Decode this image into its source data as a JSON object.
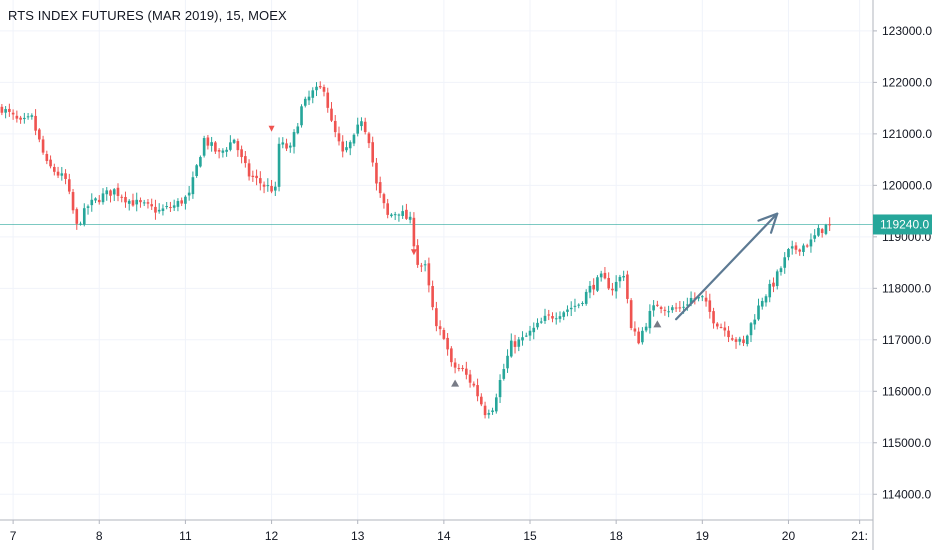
{
  "header": {
    "title": "RTS INDEX FUTURES (MAR 2019), 15, MOEX"
  },
  "colors": {
    "up": "#26a69a",
    "down": "#ef5350",
    "grid": "#f0f3fa",
    "axis_text": "#131722",
    "price_line": "#26a69a",
    "price_label_bg": "#26a69a",
    "arrow": "#5d7a93",
    "signal_down": "#ef5350",
    "signal_up": "#787b86"
  },
  "chart_data": {
    "type": "candlestick",
    "title": "RTS INDEX FUTURES (MAR 2019), 15, MOEX",
    "ylim": [
      113500,
      123600
    ],
    "y_ticks": [
      114000,
      115000,
      116000,
      117000,
      118000,
      119000,
      120000,
      121000,
      122000,
      123000
    ],
    "y_tick_labels": [
      "114000.0",
      "115000.0",
      "116000.0",
      "117000.0",
      "118000.0",
      "119000.0",
      "120000.0",
      "121000.0",
      "122000.0",
      "123000.0"
    ],
    "x_ticks": [
      {
        "label": "7",
        "bar": 3
      },
      {
        "label": "8",
        "bar": 26
      },
      {
        "label": "11",
        "bar": 49
      },
      {
        "label": "12",
        "bar": 72
      },
      {
        "label": "13",
        "bar": 95
      },
      {
        "label": "14",
        "bar": 118
      },
      {
        "label": "15",
        "bar": 141
      },
      {
        "label": "18",
        "bar": 164
      },
      {
        "label": "19",
        "bar": 187
      },
      {
        "label": "20",
        "bar": 210
      },
      {
        "label": "21:",
        "bar": 229
      }
    ],
    "total_bar_slots": 232,
    "grid": true,
    "last_price": 119240,
    "last_price_label": "119240.0",
    "path_points": [
      [
        0,
        121500
      ],
      [
        5,
        121200
      ],
      [
        8,
        121300
      ],
      [
        12,
        120400
      ],
      [
        17,
        120100
      ],
      [
        20,
        119200
      ],
      [
        23,
        119600
      ],
      [
        27,
        119800
      ],
      [
        30,
        119900
      ],
      [
        34,
        119700
      ],
      [
        38,
        119600
      ],
      [
        42,
        119500
      ],
      [
        46,
        119600
      ],
      [
        50,
        119800
      ],
      [
        54,
        120900
      ],
      [
        58,
        120600
      ],
      [
        62,
        120900
      ],
      [
        64,
        120500
      ],
      [
        66,
        120200
      ],
      [
        70,
        120000
      ],
      [
        73,
        119900
      ],
      [
        74,
        120800
      ],
      [
        77,
        120700
      ],
      [
        80,
        121500
      ],
      [
        83,
        121800
      ],
      [
        86,
        121900
      ],
      [
        88,
        121200
      ],
      [
        91,
        120600
      ],
      [
        94,
        120900
      ],
      [
        96,
        121300
      ],
      [
        98,
        120900
      ],
      [
        100,
        120000
      ],
      [
        103,
        119400
      ],
      [
        106,
        119500
      ],
      [
        109,
        119300
      ],
      [
        111,
        118500
      ],
      [
        113,
        118400
      ],
      [
        116,
        117200
      ],
      [
        118,
        117100
      ],
      [
        120,
        116500
      ],
      [
        123,
        116400
      ],
      [
        126,
        116100
      ],
      [
        129,
        115600
      ],
      [
        131,
        115700
      ],
      [
        133,
        116200
      ],
      [
        136,
        116900
      ],
      [
        139,
        117000
      ],
      [
        142,
        117200
      ],
      [
        145,
        117400
      ],
      [
        148,
        117500
      ],
      [
        151,
        117600
      ],
      [
        154,
        117700
      ],
      [
        157,
        118000
      ],
      [
        160,
        118200
      ],
      [
        163,
        118000
      ],
      [
        166,
        118300
      ],
      [
        167,
        117800
      ],
      [
        168,
        117200
      ],
      [
        170,
        117000
      ],
      [
        173,
        117500
      ],
      [
        175,
        117700
      ],
      [
        178,
        117600
      ],
      [
        181,
        117600
      ],
      [
        184,
        117800
      ],
      [
        187,
        117800
      ],
      [
        190,
        117400
      ],
      [
        193,
        117200
      ],
      [
        196,
        117000
      ],
      [
        198,
        116900
      ],
      [
        200,
        117300
      ],
      [
        203,
        117800
      ],
      [
        206,
        118100
      ],
      [
        208,
        118400
      ],
      [
        210,
        118700
      ],
      [
        213,
        118800
      ],
      [
        216,
        118900
      ],
      [
        218,
        119100
      ],
      [
        220,
        119200
      ],
      [
        221,
        119240
      ]
    ],
    "annotations": {
      "trend_arrow": {
        "from": [
          180,
          117400
        ],
        "to": [
          207,
          119450
        ]
      },
      "signals": [
        {
          "bar": 72,
          "price": 121100,
          "kind": "down"
        },
        {
          "bar": 110,
          "price": 118700,
          "kind": "down"
        },
        {
          "bar": 121,
          "price": 116150,
          "kind": "up"
        },
        {
          "bar": 175,
          "price": 117300,
          "kind": "up"
        }
      ]
    }
  }
}
